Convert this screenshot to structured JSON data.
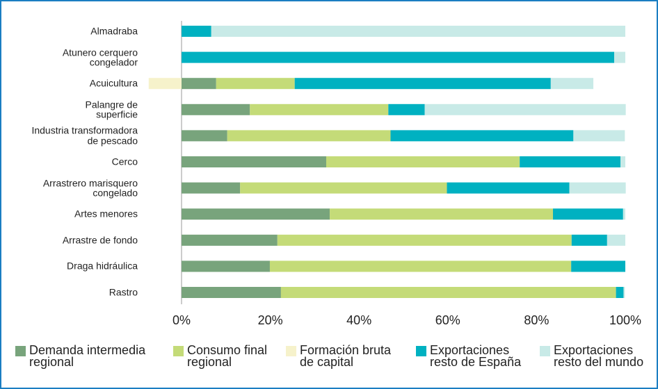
{
  "chart_data": {
    "type": "stacked-bar-horizontal",
    "categories": [
      "Almadraba",
      "Atunero cerquero\ncongelador",
      "Acuicultura",
      "Palangre de\nsuperficie",
      "Industria transformadora\nde pescado",
      "Cerco",
      "Arrastrero marisquero\ncongelado",
      "Artes menores",
      "Arrastre de fondo",
      "Draga hidráulica",
      "Rastro"
    ],
    "series": [
      {
        "name": "Demanda intermedia\nregional",
        "color": "#78a47c",
        "values": [
          0,
          0,
          7.8,
          15.4,
          10.3,
          32.6,
          13.2,
          33.4,
          21.6,
          19.9,
          22.4
        ]
      },
      {
        "name": "Consumo final\nregional",
        "color": "#c4db78",
        "values": [
          0,
          0,
          17.7,
          31.2,
          36.8,
          43.6,
          46.6,
          50.3,
          66.3,
          67.9,
          75.5
        ]
      },
      {
        "name": "Formación bruta\nde capital",
        "color": "#f6f2cb",
        "values": [
          0,
          0,
          -7.4,
          0,
          0,
          0,
          0,
          0,
          0,
          0,
          0
        ]
      },
      {
        "name": "Exportaciones\nresto de España",
        "color": "#00b1c1",
        "values": [
          6.7,
          97.5,
          57.7,
          8.2,
          41.2,
          22.7,
          27.6,
          15.8,
          8.0,
          12.2,
          1.7
        ]
      },
      {
        "name": "Exportaciones\nresto del mundo",
        "color": "#c8eae7",
        "values": [
          93.3,
          2.5,
          9.6,
          45.3,
          11.6,
          1.1,
          12.7,
          0.5,
          4.1,
          0,
          0.3
        ]
      }
    ],
    "xlim": [
      0,
      100
    ],
    "xticks": [
      {
        "value": 0,
        "label": "0%"
      },
      {
        "value": 20,
        "label": "20%"
      },
      {
        "value": 40,
        "label": "40%"
      },
      {
        "value": 60,
        "label": "60%"
      },
      {
        "value": 80,
        "label": "80%"
      },
      {
        "value": 100,
        "label": "100%"
      }
    ],
    "legend": "bottom"
  }
}
